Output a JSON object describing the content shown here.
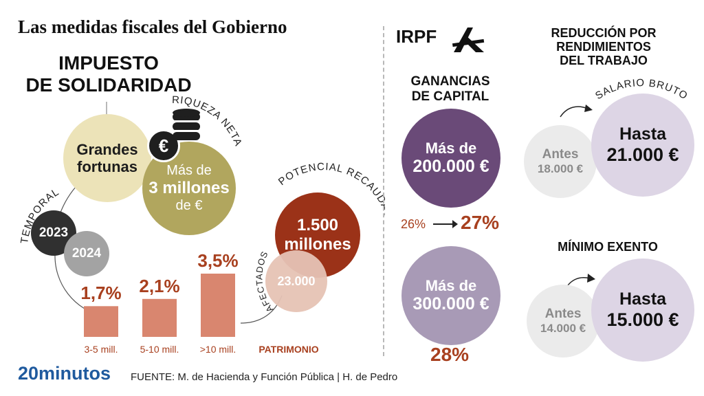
{
  "title": "Las medidas fiscales del Gobierno",
  "solidaridad": {
    "heading_line1": "IMPUESTO",
    "heading_line2": "DE SOLIDARIDAD",
    "grandes_fortunas_line1": "Grandes",
    "grandes_fortunas_line2": "fortunas",
    "riqueza_label": "RIQUEZA NETA",
    "riqueza_line1": "Más de",
    "riqueza_line2": "3 millones",
    "riqueza_line3": "de €",
    "temporal_label": "TEMPORAL",
    "year1": "2023",
    "year2": "2024",
    "recaudacion_label": "POTENCIAL RECAUDACIÓN",
    "recaudacion_line1": "1.500",
    "recaudacion_line2": "millones",
    "afectados_label": "AFECTADOS",
    "afectados_value": "23.000",
    "patrimonio_label": "PATRIMONIO"
  },
  "chart_data": {
    "type": "bar",
    "categories": [
      "3-5 mill.",
      "5-10 mill.",
      ">10 mill."
    ],
    "values": [
      1.7,
      2.1,
      3.5
    ],
    "value_labels": [
      "1,7%",
      "2,1%",
      "3,5%"
    ],
    "title": "",
    "xlabel": "PATRIMONIO",
    "ylabel": "",
    "ylim": [
      0,
      3.5
    ],
    "grid": false,
    "color": "#d9866f"
  },
  "irpf": {
    "label": "IRPF",
    "ganancias_line1": "GANANCIAS",
    "ganancias_line2": "DE CAPITAL",
    "tramo1_line1": "Más de",
    "tramo1_line2": "200.000 €",
    "tramo1_before": "26%",
    "tramo1_after": "27%",
    "tramo2_line1": "Más de",
    "tramo2_line2": "300.000 €",
    "tramo2_rate": "28%"
  },
  "reduccion": {
    "heading_line1": "REDUCCIÓN POR",
    "heading_line2": "RENDIMIENTOS",
    "heading_line3": "DEL TRABAJO",
    "salario_label": "SALARIO BRUTO",
    "antes_label": "Antes",
    "antes_value": "18.000 €",
    "hasta_label": "Hasta",
    "hasta_value": "21.000 €"
  },
  "minimo": {
    "heading": "MÍNIMO EXENTO",
    "antes_label": "Antes",
    "antes_value": "14.000 €",
    "hasta_label": "Hasta",
    "hasta_value": "15.000 €"
  },
  "footer": {
    "logo": "20minutos",
    "source": "FUENTE: M. de Hacienda y Función Pública  |  H. de Pedro"
  },
  "icons": [
    "euro-coin-icon",
    "coin-stack-icon",
    "tax-agency-logo-icon"
  ],
  "colors": {
    "cream": "#ece3b8",
    "olive": "#b1a65e",
    "dark_gray": "#303030",
    "mid_gray": "#a3a3a3",
    "rust": "#9b3218",
    "salmon": "#e6c3b5",
    "bar": "#d9866f",
    "purple_dark": "#6a4a78",
    "purple_light": "#a89ab6",
    "lavender": "#ddd5e5",
    "light_gray": "#ebebeb"
  }
}
